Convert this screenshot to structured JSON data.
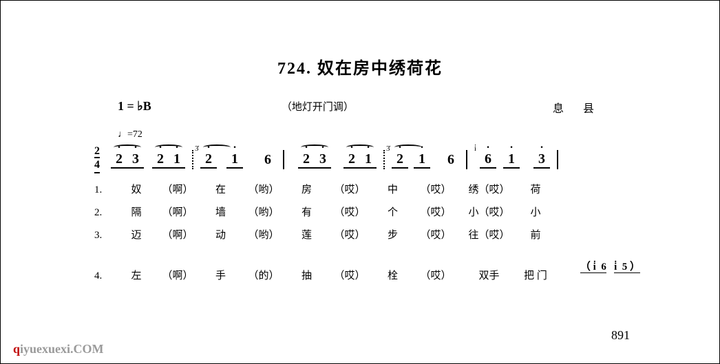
{
  "title": "724. 奴在房中绣荷花",
  "key_signature": "1 = ♭B",
  "tune_name": "（地灯开门调）",
  "region": "息 县",
  "tempo": "♩=72",
  "time_sig_top": "2",
  "time_sig_bottom": "4",
  "notation": {
    "groups": [
      {
        "notes": [
          "2̇",
          "3̇"
        ],
        "tie": true,
        "underline": true
      },
      {
        "notes": [
          "2̇",
          "1̇"
        ],
        "tie": true,
        "underline": true
      },
      {
        "bar": "dotted"
      },
      {
        "notes": [
          "2̇"
        ],
        "grace": true
      },
      {
        "notes": [
          "1̇"
        ]
      },
      {
        "notes": [
          "6"
        ]
      },
      {
        "bar": "solid"
      },
      {
        "notes": [
          "2̇",
          "3̇"
        ],
        "tie": true,
        "underline": true
      },
      {
        "notes": [
          "2̇",
          "1̇"
        ],
        "tie": true,
        "underline": true
      },
      {
        "bar": "dotted"
      },
      {
        "notes": [
          "2̇"
        ],
        "grace": true
      },
      {
        "notes": [
          "1̇"
        ]
      },
      {
        "notes": [
          "6"
        ]
      },
      {
        "bar": "solid"
      },
      {
        "notes": [
          "6̇"
        ],
        "grace": true,
        "underline": true
      },
      {
        "notes": [
          "1̇"
        ]
      },
      {
        "notes": [
          "3̇"
        ],
        "underline": true
      },
      {
        "bar": "solid"
      }
    ]
  },
  "lyrics": [
    {
      "num": "1.",
      "cells": [
        "奴",
        "（啊）",
        "在",
        "（哟）",
        "房",
        "（哎）",
        "中",
        "（哎）",
        "绣（哎）",
        "荷"
      ]
    },
    {
      "num": "2.",
      "cells": [
        "隔",
        "（啊）",
        "墙",
        "（哟）",
        "有",
        "（哎）",
        "个",
        "（哎）",
        "小（哎）",
        "小"
      ]
    },
    {
      "num": "3.",
      "cells": [
        "迈",
        "（啊）",
        "动",
        "（哟）",
        "莲",
        "（哎）",
        "步",
        "（哎）",
        "往（哎）",
        "前"
      ]
    },
    {
      "num": "4.",
      "cells": [
        "左",
        "（啊）",
        "手",
        "（的）",
        "抽",
        "（哎）",
        "栓",
        "（哎）",
        "双手",
        "把 门"
      ]
    }
  ],
  "extra_notation": "（i̇  6    i̇  5）",
  "page_number": "891",
  "watermark": {
    "q": "q",
    "rest": "iyuexuexi.COM"
  },
  "colors": {
    "text": "#000000",
    "background": "#ffffff",
    "watermark_gray": "#9a9a9a",
    "watermark_red": "#c00000"
  },
  "typography": {
    "title_fontsize": 24,
    "body_fontsize": 15,
    "notation_fontsize": 20,
    "font_family": "SimSun"
  },
  "layout": {
    "lyric_cols_widths": [
      50,
      70,
      55,
      70,
      55,
      70,
      55,
      70,
      85,
      50
    ]
  }
}
